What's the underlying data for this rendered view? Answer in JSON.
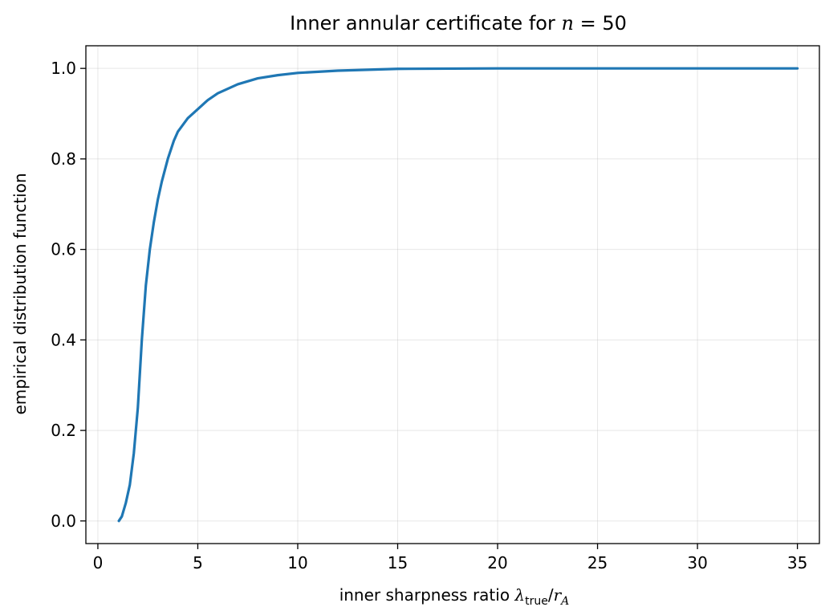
{
  "chart_data": {
    "type": "line",
    "title": {
      "prefix": "Inner annular certificate for ",
      "variable": "n",
      "operator": " = ",
      "value": "50"
    },
    "xlabel": {
      "prefix": "inner sharpness ratio ",
      "lambda": "λ",
      "lambda_sub": "true",
      "slash": "/",
      "r": "r",
      "r_sub": "A"
    },
    "ylabel": "empirical distribution function",
    "xlim": [
      -0.6,
      36.1
    ],
    "ylim": [
      -0.05,
      1.05
    ],
    "xticks": [
      0,
      5,
      10,
      15,
      20,
      25,
      30,
      35
    ],
    "xtick_labels": [
      "0",
      "5",
      "10",
      "15",
      "20",
      "25",
      "30",
      "35"
    ],
    "yticks": [
      0.0,
      0.2,
      0.4,
      0.6,
      0.8,
      1.0
    ],
    "ytick_labels": [
      "0.0",
      "0.2",
      "0.4",
      "0.6",
      "0.8",
      "1.0"
    ],
    "grid": true,
    "series": [
      {
        "color": "#1f77b4",
        "x": [
          1.05,
          1.2,
          1.4,
          1.6,
          1.8,
          2.0,
          2.2,
          2.4,
          2.6,
          2.8,
          3.0,
          3.2,
          3.5,
          3.8,
          4.0,
          4.5,
          5.0,
          5.5,
          6.0,
          7.0,
          8.0,
          9.0,
          10.0,
          12.0,
          15.0,
          20.0,
          25.0,
          30.0,
          35.0
        ],
        "y": [
          0.0,
          0.01,
          0.04,
          0.08,
          0.15,
          0.25,
          0.4,
          0.52,
          0.6,
          0.66,
          0.71,
          0.75,
          0.8,
          0.84,
          0.86,
          0.89,
          0.91,
          0.93,
          0.945,
          0.965,
          0.978,
          0.985,
          0.99,
          0.995,
          0.999,
          1.0,
          1.0,
          1.0,
          1.0
        ]
      }
    ]
  }
}
